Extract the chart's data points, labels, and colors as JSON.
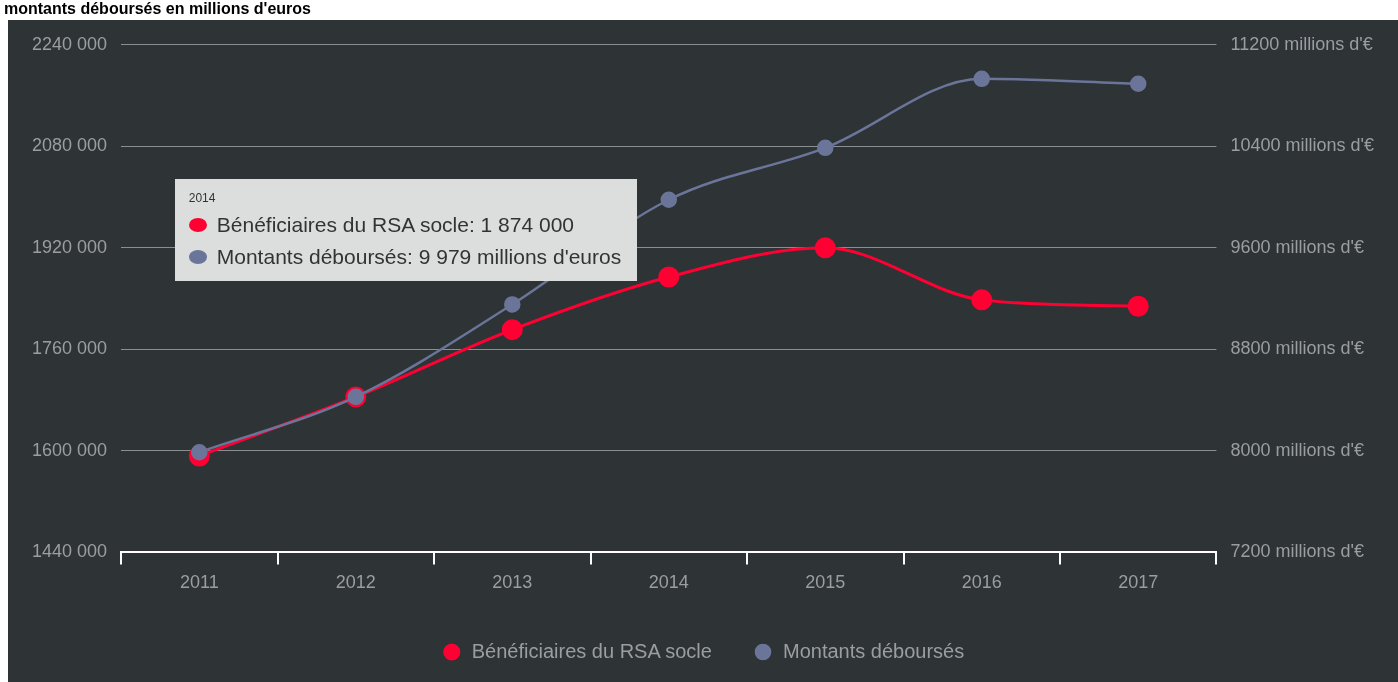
{
  "chart_data": {
    "type": "line",
    "title": "montants déboursés en millions d'euros",
    "categories": [
      "2011",
      "2012",
      "2013",
      "2014",
      "2015",
      "2016",
      "2017"
    ],
    "series": [
      {
        "name": "Bénéficiaires du RSA socle",
        "color": "#ff0033",
        "values": [
          1592000,
          1685000,
          1791000,
          1874000,
          1920000,
          1838000,
          1828000
        ]
      },
      {
        "name": "Montants déboursés",
        "color": "#6b7599",
        "axis": "y2",
        "values": [
          7989,
          8426,
          9154,
          9979,
          10388,
          10932,
          10893
        ]
      }
    ],
    "ylim": [
      1440000,
      2240000
    ],
    "yticks": [
      {
        "value": 1440000,
        "label": "1440 000"
      },
      {
        "value": 1600000,
        "label": "1600 000"
      },
      {
        "value": 1760000,
        "label": "1760 000"
      },
      {
        "value": 1920000,
        "label": "1920 000"
      },
      {
        "value": 2080000,
        "label": "2080 000"
      },
      {
        "value": 2240000,
        "label": "2240 000"
      }
    ],
    "y2lim": [
      7200,
      11200
    ],
    "y2ticks": [
      {
        "value": 7200,
        "label": "7200 millions d'€"
      },
      {
        "value": 8000,
        "label": "8000 millions d'€"
      },
      {
        "value": 8800,
        "label": "8800 millions d'€"
      },
      {
        "value": 9600,
        "label": "9600 millions d'€"
      },
      {
        "value": 10400,
        "label": "10400 millions d'€"
      },
      {
        "value": 11200,
        "label": "11200 millions d'€"
      }
    ],
    "annotations": [
      "2014",
      "Bénéficiaires du RSA socle: 1 874 000",
      "Montants déboursés: 9 979 millions d'euros"
    ],
    "grid": "y",
    "legend": "bottom",
    "marker": "circle",
    "line_style": "solid"
  }
}
